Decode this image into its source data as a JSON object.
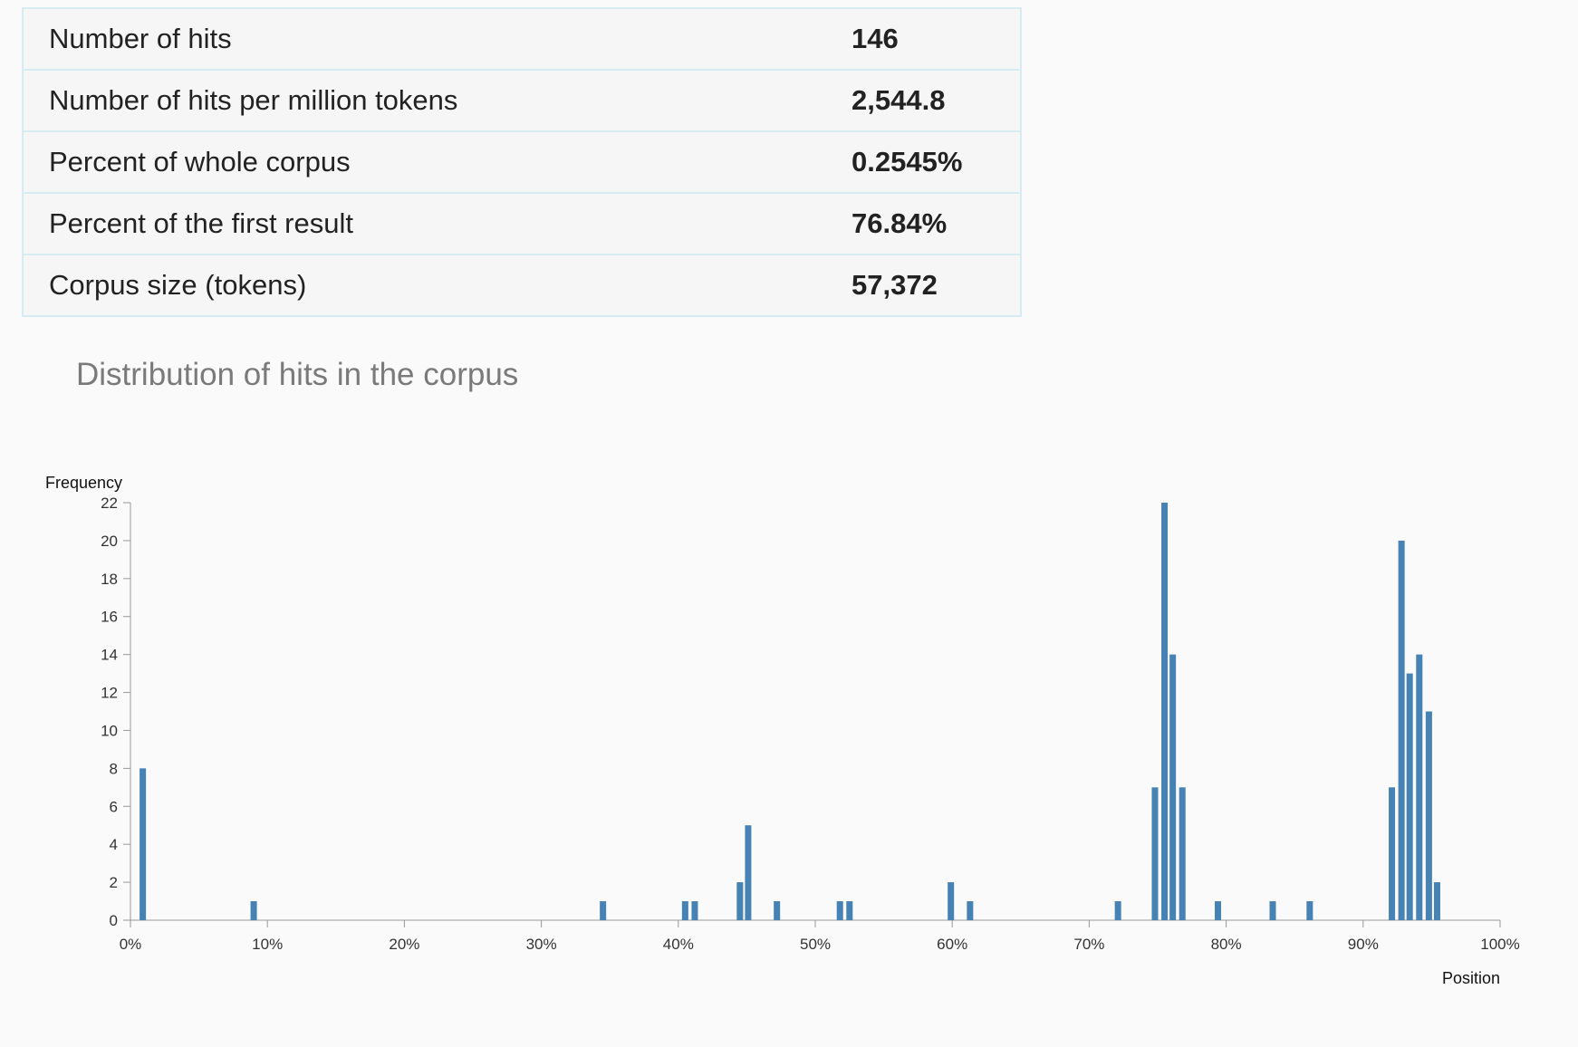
{
  "stats": [
    {
      "label": "Number of hits",
      "value": "146"
    },
    {
      "label": "Number of hits per million tokens",
      "value": "2,544.8"
    },
    {
      "label": "Percent of whole corpus",
      "value": "0.2545%"
    },
    {
      "label": "Percent of the first result",
      "value": "76.84%"
    },
    {
      "label": "Corpus size (tokens)",
      "value": "57,372"
    }
  ],
  "chart_title": "Distribution of hits in the corpus",
  "chart_data": {
    "type": "bar",
    "ylabel": "Frequency",
    "xlabel": "Position",
    "ylim": [
      0,
      22
    ],
    "xlim": [
      0,
      100
    ],
    "y_ticks": [
      0,
      2,
      4,
      6,
      8,
      10,
      12,
      14,
      16,
      18,
      20,
      22
    ],
    "x_ticks": [
      "0%",
      "10%",
      "20%",
      "30%",
      "40%",
      "50%",
      "60%",
      "70%",
      "80%",
      "90%",
      "100%"
    ],
    "bar_color": "#4682b4",
    "bars": [
      {
        "x": 0.9,
        "value": 8
      },
      {
        "x": 9.0,
        "value": 1
      },
      {
        "x": 34.5,
        "value": 1
      },
      {
        "x": 40.5,
        "value": 1
      },
      {
        "x": 41.2,
        "value": 1
      },
      {
        "x": 44.5,
        "value": 2
      },
      {
        "x": 45.1,
        "value": 5
      },
      {
        "x": 47.2,
        "value": 1
      },
      {
        "x": 51.8,
        "value": 1
      },
      {
        "x": 52.5,
        "value": 1
      },
      {
        "x": 59.9,
        "value": 2
      },
      {
        "x": 61.3,
        "value": 1
      },
      {
        "x": 72.1,
        "value": 1
      },
      {
        "x": 74.8,
        "value": 7
      },
      {
        "x": 75.5,
        "value": 22
      },
      {
        "x": 76.1,
        "value": 14
      },
      {
        "x": 76.8,
        "value": 7
      },
      {
        "x": 79.4,
        "value": 1
      },
      {
        "x": 83.4,
        "value": 1
      },
      {
        "x": 86.1,
        "value": 1
      },
      {
        "x": 92.1,
        "value": 7
      },
      {
        "x": 92.8,
        "value": 20
      },
      {
        "x": 93.4,
        "value": 13
      },
      {
        "x": 94.1,
        "value": 14
      },
      {
        "x": 94.8,
        "value": 11
      },
      {
        "x": 95.4,
        "value": 2
      }
    ]
  }
}
